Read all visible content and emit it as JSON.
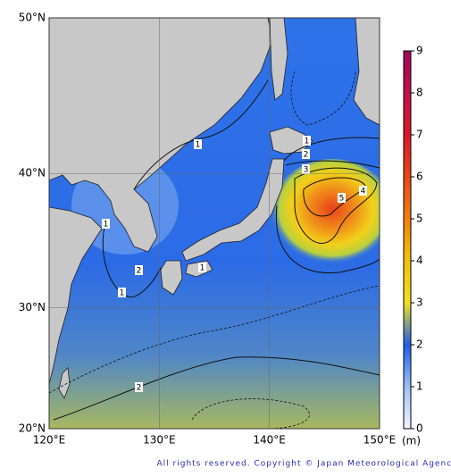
{
  "map": {
    "lon_range": [
      120,
      150
    ],
    "lat_range": [
      20,
      50
    ],
    "lon_labels": [
      {
        "value": 120,
        "label": "120°E"
      },
      {
        "value": 130,
        "label": "130°E"
      },
      {
        "value": 140,
        "label": "140°E"
      },
      {
        "value": 150,
        "label": "150°E"
      }
    ],
    "lat_labels": [
      {
        "value": 20,
        "label": "20°N"
      },
      {
        "value": 30,
        "label": "30°N"
      },
      {
        "value": 40,
        "label": "40°N"
      },
      {
        "value": 50,
        "label": "50°N"
      }
    ],
    "contour_labels": [
      "1",
      "1",
      "1",
      "1",
      "2",
      "1",
      "2",
      "3",
      "4",
      "5",
      "2"
    ],
    "colorbar": {
      "ticks": [
        0,
        1,
        2,
        3,
        4,
        5,
        6,
        7,
        8,
        9
      ],
      "unit": "(m)"
    },
    "copyright": "All rights reserved. Copyright © Japan Meteorological Agency"
  }
}
